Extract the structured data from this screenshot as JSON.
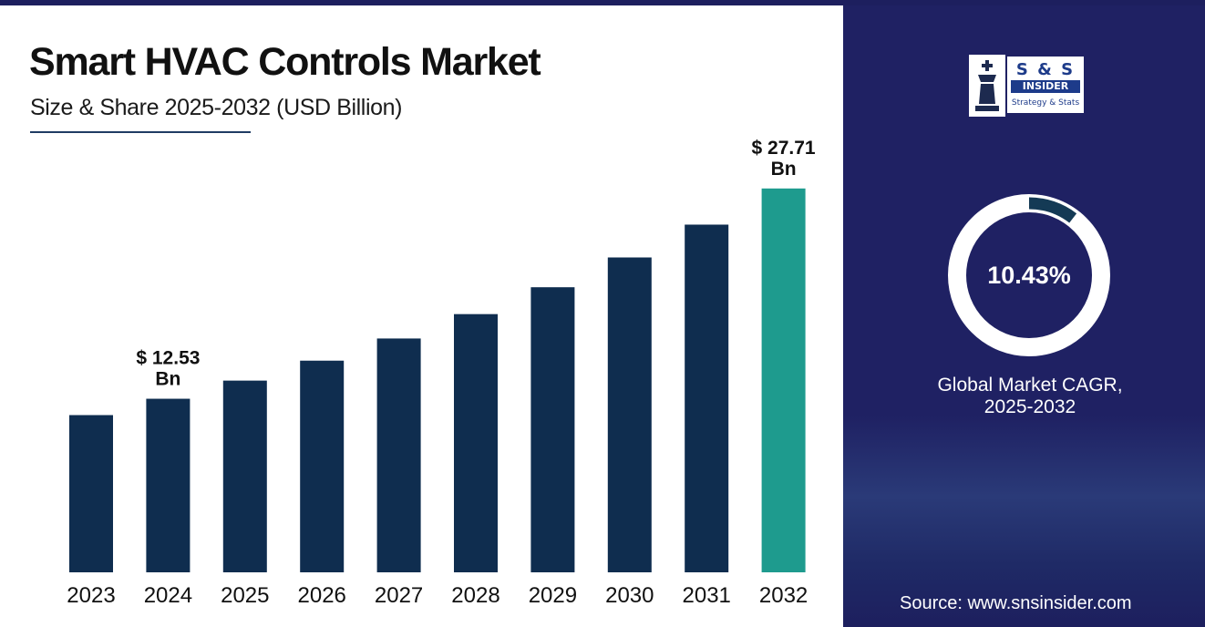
{
  "header": {
    "title": "Smart HVAC Controls Market",
    "subtitle": "Size & Share 2025-2032 (USD Billion)"
  },
  "logo": {
    "brand": "S & S",
    "name": "INSIDER",
    "tagline": "Strategy & Stats",
    "icon": "chess-king-icon"
  },
  "cagr": {
    "value": "10.43%",
    "label_line1": "Global Market CAGR,",
    "label_line2": "2025-2032",
    "fraction": 0.1043
  },
  "source": "Source: www.snsinsider.com",
  "colors": {
    "bar": "#0f2d4f",
    "highlight_bar": "#1e9b8e",
    "panel": "#1f2163",
    "ring": "#ffffff",
    "ring_progress": "#143a55"
  },
  "chart_data": {
    "type": "bar",
    "title": "Smart HVAC Controls Market",
    "subtitle": "Size & Share 2025-2032 (USD Billion)",
    "categories": [
      "2023",
      "2024",
      "2025",
      "2026",
      "2027",
      "2028",
      "2029",
      "2030",
      "2031",
      "2032"
    ],
    "values": [
      11.35,
      12.53,
      13.84,
      15.28,
      16.88,
      18.64,
      20.58,
      22.73,
      25.1,
      27.71
    ],
    "highlight_index": 9,
    "annotations": [
      {
        "index": 1,
        "line1": "$ 12.53",
        "line2": "Bn"
      },
      {
        "index": 9,
        "line1": "$ 27.71",
        "line2": "Bn"
      }
    ],
    "xlabel": "",
    "ylabel": "",
    "ylim": [
      0,
      30
    ],
    "grid": false,
    "legend": "none"
  }
}
